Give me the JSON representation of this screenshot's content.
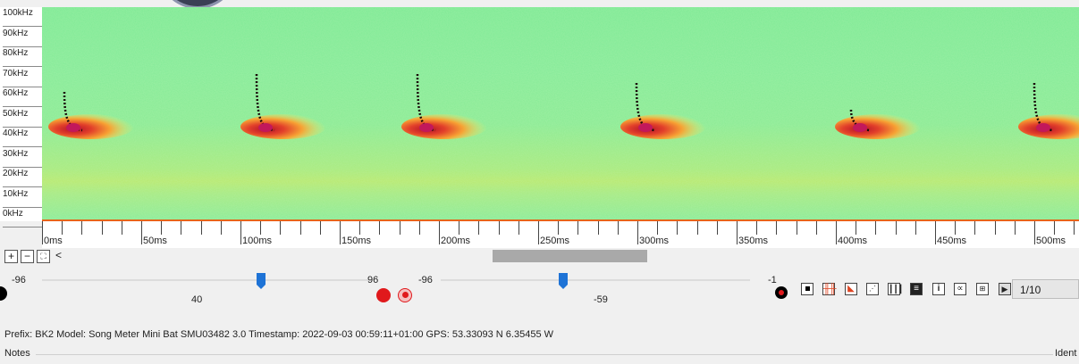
{
  "freq_axis": {
    "labels": [
      "100kHz",
      "90kHz",
      "80kHz",
      "70kHz",
      "60kHz",
      "50kHz",
      "40kHz",
      "30kHz",
      "20kHz",
      "10kHz",
      "0kHz"
    ]
  },
  "time_axis": {
    "labels": [
      "0ms",
      "50ms",
      "100ms",
      "150ms",
      "200ms",
      "250ms",
      "300ms",
      "350ms",
      "400ms",
      "450ms",
      "500ms"
    ]
  },
  "zoom": {
    "in_label": "+",
    "out_label": "−",
    "fit_label": "⛶",
    "back_label": "<"
  },
  "slider_left": {
    "min_label": "-96",
    "max_label": "96",
    "value": "40"
  },
  "slider_right": {
    "min_label": "-96",
    "max_label": "-1",
    "value": "-59"
  },
  "page_indicator": "1/10",
  "info": "Prefix: BK2   Model: Song Meter Mini Bat SMU03482 3.0   Timestamp: 2022-09-03 00:59:11+01:00   GPS: 53.33093 N 6.35455 W",
  "notes_label": "Notes",
  "ident_label": "Ident",
  "colors": {
    "spectro_bg": "#86eb96",
    "call_core": "#d7312b",
    "call_mid": "#f59a33",
    "record_red": "#e0191c",
    "slider_blue": "#1e73d6",
    "axis_orange": "#e8641a"
  },
  "icons": [
    "record-dot-icon",
    "record-target-icon",
    "stop-icon",
    "waveform-icon",
    "marker-icon",
    "select-icon",
    "columns-icon",
    "list-icon",
    "info-icon",
    "alpha-icon",
    "table-icon",
    "play-icon"
  ]
}
